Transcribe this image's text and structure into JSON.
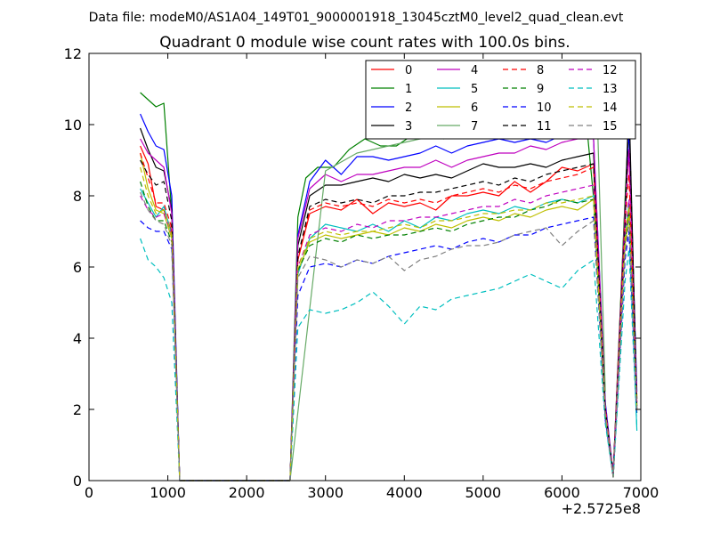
{
  "suptitle": "Data file: modeM0/AS1A04_149T01_9000001918_13045cztM0_level2_quad_clean.evt",
  "chart_data": {
    "type": "line",
    "title": "Quadrant 0 module wise count rates with 100.0s bins.",
    "xlabel": "",
    "ylabel": "",
    "x_offset_label": "+2.5725e8",
    "xlim": [
      0,
      7000
    ],
    "ylim": [
      0,
      12
    ],
    "x_ticks": [
      "0",
      "1000",
      "2000",
      "3000",
      "4000",
      "5000",
      "6000",
      "7000"
    ],
    "y_ticks": [
      "0",
      "2",
      "4",
      "6",
      "8",
      "10",
      "12"
    ],
    "grid": false,
    "legend_position": "top-right",
    "series": [
      {
        "name": "0",
        "color": "#ff0000",
        "style": "solid",
        "x": [
          650,
          750,
          850,
          950,
          1050,
          1150,
          2550,
          2650,
          2800,
          3000,
          3200,
          3400,
          3600,
          3800,
          4000,
          4200,
          4400,
          4600,
          4800,
          5000,
          5200,
          5400,
          5600,
          5800,
          6000,
          6200,
          6400,
          6550,
          6650,
          6800,
          6850,
          6950
        ],
        "y": [
          9.4,
          8.9,
          7.7,
          7.6,
          7.0,
          0.0,
          0.0,
          6.2,
          7.5,
          7.7,
          7.6,
          7.9,
          7.5,
          7.8,
          7.7,
          7.8,
          7.6,
          8.0,
          8.0,
          8.1,
          8.0,
          8.4,
          8.1,
          8.4,
          8.8,
          8.7,
          8.9,
          2.0,
          0.2,
          7.8,
          9.2,
          2.3
        ]
      },
      {
        "name": "1",
        "color": "#008000",
        "style": "solid",
        "x": [
          650,
          750,
          850,
          950,
          1050,
          1150,
          2550,
          2650,
          2750,
          2900,
          3100,
          3300,
          3500,
          3700,
          3900,
          4100,
          4300,
          4500,
          4700,
          4900,
          5100,
          5300,
          5500,
          5700,
          5900,
          6100,
          6300,
          6450,
          6550,
          6650,
          6800,
          6850,
          6950
        ],
        "y": [
          10.9,
          10.7,
          10.5,
          10.6,
          7.5,
          0.0,
          0.0,
          7.4,
          8.5,
          8.8,
          8.8,
          9.3,
          9.6,
          9.4,
          9.4,
          9.7,
          9.9,
          9.6,
          9.7,
          10.1,
          10.2,
          10.2,
          10.1,
          10.2,
          10.0,
          10.2,
          10.3,
          6.8,
          1.8,
          0.2,
          7.9,
          10.2,
          2.3
        ]
      },
      {
        "name": "2",
        "color": "#0000ff",
        "style": "solid",
        "x": [
          650,
          750,
          850,
          950,
          1050,
          1150,
          2550,
          2650,
          2800,
          3000,
          3200,
          3400,
          3600,
          3800,
          4000,
          4200,
          4400,
          4600,
          4800,
          5000,
          5200,
          5400,
          5600,
          5800,
          6000,
          6200,
          6400,
          6550,
          6650,
          6800,
          6850,
          6950
        ],
        "y": [
          10.3,
          9.8,
          9.4,
          9.3,
          8.0,
          0.0,
          0.0,
          6.9,
          8.4,
          9.0,
          8.6,
          9.1,
          9.1,
          9.0,
          9.1,
          9.2,
          9.4,
          9.2,
          9.4,
          9.5,
          9.6,
          9.5,
          9.6,
          9.5,
          9.7,
          9.9,
          9.6,
          2.2,
          0.2,
          7.4,
          9.9,
          2.5
        ]
      },
      {
        "name": "3",
        "color": "#000000",
        "style": "solid",
        "x": [
          650,
          750,
          850,
          950,
          1050,
          1150,
          2550,
          2650,
          2800,
          3000,
          3200,
          3400,
          3600,
          3800,
          4000,
          4200,
          4400,
          4600,
          4800,
          5000,
          5200,
          5400,
          5600,
          5800,
          6000,
          6200,
          6400,
          6550,
          6650,
          6800,
          6850,
          6950
        ],
        "y": [
          9.9,
          9.3,
          8.8,
          8.7,
          7.6,
          0.0,
          0.0,
          6.6,
          8.0,
          8.3,
          8.3,
          8.4,
          8.5,
          8.4,
          8.6,
          8.5,
          8.6,
          8.5,
          8.7,
          8.9,
          8.8,
          8.8,
          8.9,
          8.8,
          9.0,
          9.1,
          9.2,
          2.1,
          0.1,
          7.5,
          10.7,
          2.0
        ]
      },
      {
        "name": "4",
        "color": "#bf00bf",
        "style": "solid",
        "x": [
          650,
          750,
          850,
          950,
          1050,
          1150,
          2550,
          2650,
          2800,
          3000,
          3200,
          3400,
          3600,
          3800,
          4000,
          4200,
          4400,
          4600,
          4800,
          5000,
          5200,
          5400,
          5600,
          5800,
          6000,
          6200,
          6400,
          6550,
          6650,
          6800,
          6850,
          6950
        ],
        "y": [
          9.6,
          9.2,
          9.0,
          8.8,
          7.5,
          0.0,
          0.0,
          6.8,
          8.2,
          8.6,
          8.4,
          8.6,
          8.6,
          8.7,
          8.8,
          8.8,
          9.0,
          8.8,
          9.0,
          9.1,
          9.2,
          9.2,
          9.4,
          9.3,
          9.5,
          9.6,
          9.6,
          2.1,
          0.2,
          7.6,
          9.3,
          2.2
        ]
      },
      {
        "name": "5",
        "color": "#00bfbf",
        "style": "solid",
        "x": [
          650,
          750,
          850,
          950,
          1050,
          1150,
          2550,
          2650,
          2800,
          3000,
          3200,
          3400,
          3600,
          3800,
          4000,
          4200,
          4400,
          4600,
          4800,
          5000,
          5200,
          5400,
          5600,
          5800,
          6000,
          6200,
          6400,
          6550,
          6650,
          6800,
          6850,
          6950
        ],
        "y": [
          8.2,
          7.8,
          7.4,
          7.7,
          6.9,
          0.0,
          0.0,
          5.8,
          6.8,
          7.2,
          7.1,
          7.0,
          7.2,
          7.0,
          7.3,
          7.1,
          7.4,
          7.3,
          7.5,
          7.6,
          7.5,
          7.7,
          7.6,
          7.8,
          7.9,
          7.8,
          8.0,
          1.9,
          0.2,
          6.8,
          7.8,
          1.4
        ]
      },
      {
        "name": "6",
        "color": "#bfbf00",
        "style": "solid",
        "x": [
          650,
          750,
          850,
          950,
          1050,
          1150,
          2550,
          2650,
          2800,
          3000,
          3200,
          3400,
          3600,
          3800,
          4000,
          4200,
          4400,
          4600,
          4800,
          5000,
          5200,
          5400,
          5600,
          5800,
          6000,
          6200,
          6400,
          6550,
          6650,
          6800,
          6850,
          6950
        ],
        "y": [
          9.2,
          8.2,
          7.6,
          7.5,
          6.8,
          0.0,
          0.0,
          5.9,
          6.7,
          6.9,
          6.8,
          6.9,
          7.0,
          6.9,
          7.1,
          7.0,
          7.2,
          7.1,
          7.3,
          7.4,
          7.3,
          7.5,
          7.4,
          7.6,
          7.7,
          7.6,
          7.9,
          1.8,
          0.1,
          6.6,
          7.5,
          2.0
        ]
      },
      {
        "name": "7",
        "color": "#66aa66",
        "style": "solid",
        "x": [
          2550,
          3000,
          3400,
          3800,
          4200,
          4600,
          5000,
          5400,
          5800,
          6000,
          6150,
          6300,
          6450,
          6550
        ],
        "y": [
          0.0,
          8.7,
          9.2,
          9.4,
          9.6,
          9.7,
          10.0,
          10.2,
          10.4,
          10.8,
          10.6,
          10.2,
          10.1,
          2.5
        ]
      },
      {
        "name": "8",
        "color": "#ff0000",
        "style": "dashed",
        "x": [
          650,
          750,
          850,
          950,
          1050,
          1150,
          2550,
          2650,
          2800,
          3000,
          3200,
          3400,
          3600,
          3800,
          4000,
          4200,
          4400,
          4600,
          4800,
          5000,
          5200,
          5400,
          5600,
          5800,
          6000,
          6200,
          6400,
          6550,
          6650,
          6800,
          6850,
          6950
        ],
        "y": [
          9.2,
          8.5,
          7.8,
          7.8,
          7.1,
          0.0,
          0.0,
          6.2,
          7.6,
          7.8,
          7.7,
          7.8,
          7.7,
          7.9,
          7.8,
          7.9,
          7.8,
          8.0,
          8.1,
          8.2,
          8.1,
          8.3,
          8.2,
          8.4,
          8.5,
          8.6,
          8.8,
          2.0,
          0.2,
          7.3,
          8.6,
          2.2
        ]
      },
      {
        "name": "9",
        "color": "#008000",
        "style": "dashed",
        "x": [
          650,
          750,
          850,
          950,
          1050,
          1150,
          2550,
          2650,
          2800,
          3000,
          3200,
          3400,
          3600,
          3800,
          4000,
          4200,
          4400,
          4600,
          4800,
          5000,
          5200,
          5400,
          5600,
          5800,
          6000,
          6200,
          6400,
          6550,
          6650,
          6800,
          6850,
          6950
        ],
        "y": [
          8.4,
          7.7,
          7.3,
          7.3,
          6.7,
          0.0,
          0.0,
          5.9,
          6.6,
          6.8,
          6.7,
          6.9,
          6.8,
          6.9,
          6.9,
          7.0,
          7.1,
          7.0,
          7.2,
          7.3,
          7.4,
          7.4,
          7.6,
          7.7,
          7.9,
          7.8,
          7.9,
          1.9,
          0.1,
          6.7,
          7.6,
          1.9
        ]
      },
      {
        "name": "10",
        "color": "#0000ff",
        "style": "dashed",
        "x": [
          650,
          750,
          850,
          950,
          1050,
          1150,
          2550,
          2650,
          2800,
          3000,
          3200,
          3400,
          3600,
          3800,
          4000,
          4200,
          4400,
          4600,
          4800,
          5000,
          5200,
          5400,
          5600,
          5800,
          6000,
          6200,
          6400,
          6550,
          6650,
          6800,
          6850,
          6950
        ],
        "y": [
          7.3,
          7.1,
          7.0,
          7.0,
          6.5,
          0.0,
          0.0,
          5.2,
          6.0,
          6.1,
          6.0,
          6.2,
          6.1,
          6.3,
          6.4,
          6.5,
          6.6,
          6.5,
          6.7,
          6.8,
          6.7,
          6.9,
          6.9,
          7.1,
          7.2,
          7.3,
          7.4,
          1.7,
          0.1,
          6.2,
          7.0,
          1.8
        ]
      },
      {
        "name": "11",
        "color": "#000000",
        "style": "dashed",
        "x": [
          650,
          750,
          850,
          950,
          1050,
          1150,
          2550,
          2650,
          2800,
          3000,
          3200,
          3400,
          3600,
          3800,
          4000,
          4200,
          4400,
          4600,
          4800,
          5000,
          5200,
          5400,
          5600,
          5800,
          6000,
          6200,
          6400,
          6550,
          6650,
          6800,
          6850,
          6950
        ],
        "y": [
          9.0,
          8.6,
          8.3,
          8.4,
          7.3,
          0.0,
          0.0,
          6.3,
          7.7,
          7.9,
          7.8,
          7.9,
          7.8,
          8.0,
          8.0,
          8.1,
          8.1,
          8.2,
          8.3,
          8.4,
          8.3,
          8.5,
          8.4,
          8.6,
          8.7,
          8.8,
          8.9,
          2.0,
          0.2,
          7.2,
          10.4,
          2.1
        ]
      },
      {
        "name": "12",
        "color": "#bf00bf",
        "style": "dashed",
        "x": [
          650,
          750,
          850,
          950,
          1050,
          1150,
          2550,
          2650,
          2800,
          3000,
          3200,
          3400,
          3600,
          3800,
          4000,
          4200,
          4400,
          4600,
          4800,
          5000,
          5200,
          5400,
          5600,
          5800,
          6000,
          6200,
          6400,
          6550,
          6650,
          6800,
          6850,
          6950
        ],
        "y": [
          8.0,
          7.6,
          7.4,
          7.5,
          6.9,
          0.0,
          0.0,
          6.0,
          6.9,
          7.1,
          7.0,
          7.2,
          7.1,
          7.3,
          7.3,
          7.4,
          7.4,
          7.5,
          7.6,
          7.7,
          7.7,
          7.9,
          7.8,
          8.0,
          8.1,
          8.2,
          8.3,
          1.9,
          0.2,
          6.9,
          7.9,
          2.0
        ]
      },
      {
        "name": "13",
        "color": "#00bfbf",
        "style": "dashed",
        "x": [
          650,
          750,
          850,
          950,
          1050,
          1150,
          2550,
          2650,
          2800,
          3000,
          3200,
          3400,
          3600,
          3800,
          4000,
          4200,
          4400,
          4600,
          4800,
          5000,
          5200,
          5400,
          5600,
          5800,
          6000,
          6200,
          6400,
          6550,
          6650,
          6800,
          6850,
          6950
        ],
        "y": [
          6.8,
          6.2,
          6.0,
          5.7,
          5.0,
          0.0,
          0.0,
          4.3,
          4.8,
          4.7,
          4.8,
          5.0,
          5.3,
          4.9,
          4.4,
          4.9,
          4.8,
          5.1,
          5.2,
          5.3,
          5.4,
          5.6,
          5.8,
          5.6,
          5.4,
          5.9,
          6.2,
          1.6,
          0.1,
          5.6,
          6.5,
          1.5
        ]
      },
      {
        "name": "14",
        "color": "#bfbf00",
        "style": "dashed",
        "x": [
          650,
          750,
          850,
          950,
          1050,
          1150,
          2550,
          2650,
          2800,
          3000,
          3200,
          3400,
          3600,
          3800,
          4000,
          4200,
          4400,
          4600,
          4800,
          5000,
          5200,
          5400,
          5600,
          5800,
          6000,
          6200,
          6400,
          6550,
          6650,
          6800,
          6850,
          6950
        ],
        "y": [
          8.8,
          8.0,
          7.5,
          7.6,
          6.9,
          0.0,
          0.0,
          6.0,
          6.8,
          7.0,
          6.9,
          7.0,
          7.0,
          7.1,
          7.2,
          7.1,
          7.3,
          7.3,
          7.4,
          7.5,
          7.5,
          7.6,
          7.6,
          7.8,
          7.8,
          7.9,
          8.0,
          1.9,
          0.1,
          6.8,
          7.7,
          2.0
        ]
      },
      {
        "name": "15",
        "color": "#808080",
        "style": "dashed",
        "x": [
          650,
          750,
          850,
          950,
          1050,
          1150,
          2550,
          2650,
          2800,
          3000,
          3200,
          3400,
          3600,
          3800,
          4000,
          4200,
          4400,
          4600,
          4800,
          5000,
          5200,
          5400,
          5600,
          5800,
          6000,
          6200,
          6400,
          6550,
          6650,
          6800,
          6850,
          6950
        ],
        "y": [
          8.1,
          7.6,
          7.3,
          7.2,
          6.6,
          0.0,
          0.0,
          5.7,
          6.3,
          6.2,
          6.0,
          6.2,
          6.1,
          6.3,
          5.9,
          6.2,
          6.3,
          6.5,
          6.6,
          6.6,
          6.7,
          6.9,
          7.0,
          7.1,
          6.6,
          7.0,
          7.3,
          1.8,
          0.1,
          6.4,
          7.3,
          1.9
        ]
      }
    ]
  }
}
